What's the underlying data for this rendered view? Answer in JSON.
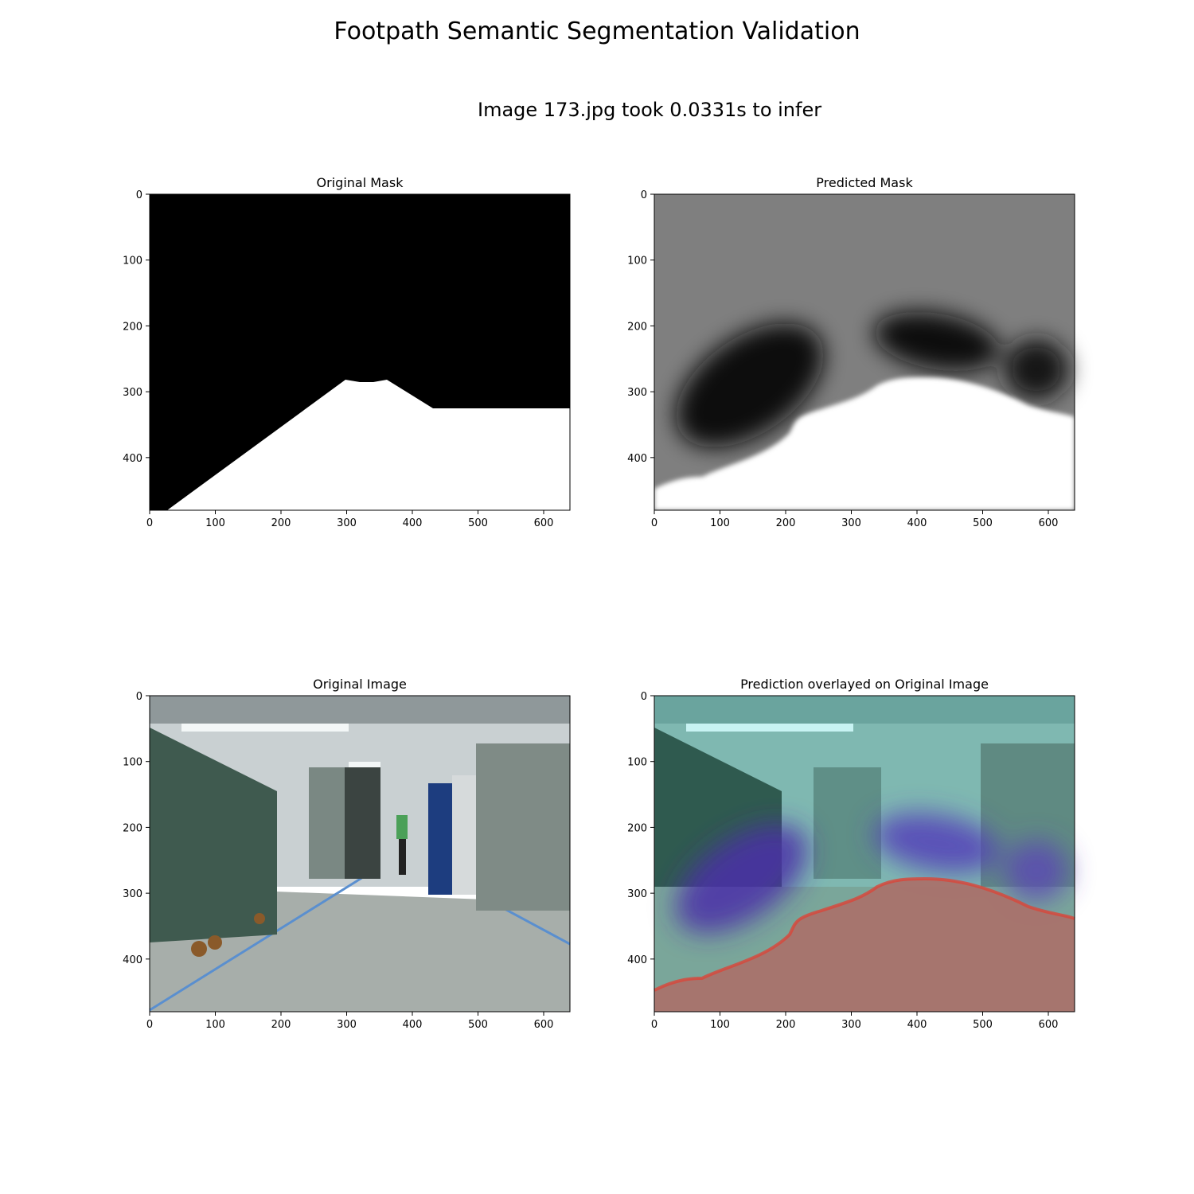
{
  "figure": {
    "title": "Footpath Semantic Segmentation Validation",
    "subtitle": "Image 173.jpg took 0.0331s to infer"
  },
  "panels": [
    {
      "id": "original-mask",
      "title": "Original Mask"
    },
    {
      "id": "predicted-mask",
      "title": "Predicted Mask"
    },
    {
      "id": "original-image",
      "title": "Original Image"
    },
    {
      "id": "overlay",
      "title": "Prediction overlayed on Original Image"
    }
  ],
  "axes": {
    "x_ticks": [
      "0",
      "100",
      "200",
      "300",
      "400",
      "500",
      "600"
    ],
    "y_ticks": [
      "0",
      "100",
      "200",
      "300",
      "400"
    ],
    "x_range": [
      0,
      640
    ],
    "y_range": [
      0,
      480
    ]
  },
  "colors": {
    "mask_background": "#000000",
    "mask_foreground": "#ffffff",
    "overlay_path": "#a9726b",
    "overlay_low": "#5a3fb0",
    "overlay_high": "#9ad8d0"
  }
}
